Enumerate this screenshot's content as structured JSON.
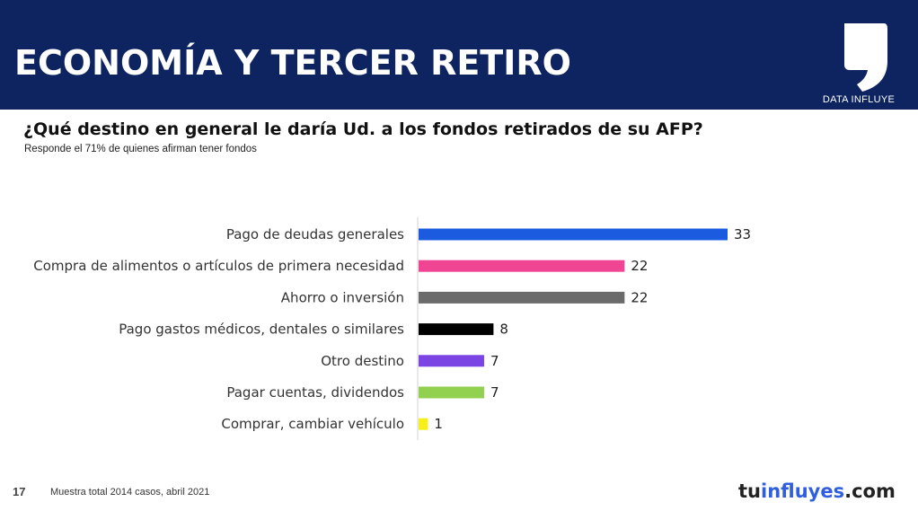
{
  "header": {
    "title": "ECONOMÍA Y TERCER RETIRO",
    "brand_label": "DATA INFLUYE"
  },
  "question": "¿Qué destino en general le daría Ud. a los fondos retirados de su AFP?",
  "subtitle": "Responde el 71% de quienes afirman tener fondos",
  "footer": {
    "page_number": "17",
    "note": "Muestra total 2014 casos,  abril 2021",
    "brand_prefix": "tu",
    "brand_main": "influyes",
    "brand_suffix": ".com"
  },
  "colors": {
    "header_bg": "#0d2461",
    "brand_prefix": "#222222",
    "brand_main": "#2f5ee0",
    "brand_suffix": "#222222"
  },
  "chart_data": {
    "type": "bar",
    "orientation": "horizontal",
    "categories": [
      "Pago de deudas generales",
      "Compra de alimentos o artículos de primera necesidad",
      "Ahorro o inversión",
      "Pago gastos médicos, dentales o similares",
      "Otro destino",
      "Pagar cuentas, dividendos",
      "Comprar, cambiar vehículo"
    ],
    "values": [
      33,
      22,
      22,
      8,
      7,
      7,
      1
    ],
    "bar_colors": [
      "#1a5be0",
      "#ef4593",
      "#6b6b6b",
      "#000000",
      "#7b45e3",
      "#92d050",
      "#f7ef1a"
    ],
    "xlim": [
      0,
      35
    ],
    "grid": false,
    "legend": "none",
    "title": "",
    "xlabel": "",
    "ylabel": ""
  }
}
